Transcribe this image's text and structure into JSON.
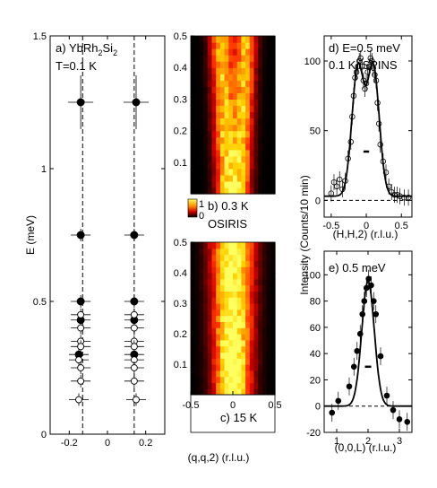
{
  "chart_data": [
    {
      "id": "a",
      "type": "scatter",
      "panel_label": "a)",
      "title_parts": [
        "YbRh",
        "2",
        "Si",
        "2"
      ],
      "subtitle": "T=0.1 K",
      "ylabel": "E (meV)",
      "xlim": [
        -0.3,
        0.3
      ],
      "ylim": [
        0,
        1.5
      ],
      "xticks": [
        "-0.2",
        "0",
        "0.2"
      ],
      "xtick_values": [
        -0.2,
        0,
        0.2
      ],
      "yticks": [
        "0",
        "0.5",
        "1",
        "1.5"
      ],
      "ytick_values": [
        0,
        0.5,
        1,
        1.5
      ],
      "dashed_x": [
        -0.13,
        0.14
      ],
      "series": [
        {
          "marker": "filled",
          "x": [
            -0.14,
            0.15,
            -0.14,
            0.14,
            -0.14,
            0.14,
            -0.14,
            0.14,
            -0.15,
            0.14
          ],
          "y": [
            1.25,
            1.25,
            0.75,
            0.75,
            0.5,
            0.5,
            0.43,
            0.43,
            0.3,
            0.3
          ]
        },
        {
          "marker": "open",
          "x": [
            -0.14,
            0.14,
            -0.14,
            0.14,
            -0.14,
            0.14,
            -0.14,
            0.14,
            -0.15,
            0.14,
            -0.14,
            0.14,
            -0.14,
            0.14,
            -0.15,
            0.15
          ],
          "y": [
            0.45,
            0.45,
            0.4,
            0.4,
            0.35,
            0.35,
            0.33,
            0.33,
            0.28,
            0.28,
            0.25,
            0.25,
            0.2,
            0.2,
            0.13,
            0.13
          ]
        }
      ]
    },
    {
      "id": "b",
      "type": "heatmap",
      "panel_label": "b)",
      "label": "0.3 K",
      "instrument": "OSIRIS",
      "colorbar_ticks": [
        "1",
        "0"
      ],
      "colors": [
        "#000000",
        "#6a0000",
        "#cc0000",
        "#ff3300",
        "#ff8a00",
        "#ffd000",
        "#ffff60"
      ],
      "xlim": [
        -0.5,
        0.5
      ],
      "ylim": [
        0,
        0.5
      ],
      "yticks": [
        "0.1",
        "0.2",
        "0.3",
        "0.4",
        "0.5"
      ],
      "ytick_values": [
        0.1,
        0.2,
        0.3,
        0.4,
        0.5
      ],
      "ridge_offsets": [
        -0.13,
        0.14
      ],
      "width": 0.09,
      "intensity_scale": 1.0
    },
    {
      "id": "c",
      "type": "heatmap",
      "panel_label": "c)",
      "label": "15 K",
      "colors": [
        "#000000",
        "#6a0000",
        "#cc0000",
        "#ff3300",
        "#ff8a00",
        "#ffd000",
        "#ffff60"
      ],
      "xlabel": "(q,q,2) (r.l.u.)",
      "xlim": [
        -0.5,
        0.5
      ],
      "ylim": [
        0,
        0.5
      ],
      "xticks": [
        "-0.5",
        "0",
        "0.5"
      ],
      "xtick_values": [
        -0.5,
        0,
        0.5
      ],
      "yticks": [
        "0.1",
        "0.2",
        "0.3",
        "0.4",
        "0.5"
      ],
      "ytick_values": [
        0.1,
        0.2,
        0.3,
        0.4,
        0.5
      ],
      "ridge_offsets": [
        -0.1,
        0.1
      ],
      "width": 0.13,
      "intensity_scale": 0.85
    },
    {
      "id": "d",
      "type": "scatter",
      "panel_label": "d)",
      "label": "E=0.5 meV",
      "sublabel": "0.1 K, SPINS",
      "xlabel": "(H,H,2) (r.l.u.)",
      "xlim": [
        -0.6,
        0.65
      ],
      "ylim": [
        -12,
        118
      ],
      "xticks": [
        "-0.5",
        "0",
        "0.5"
      ],
      "xtick_values": [
        -0.5,
        0,
        0.5
      ],
      "yticks": [
        "0",
        "50",
        "100"
      ],
      "ytick_values": [
        0,
        50,
        100
      ],
      "x": [
        -0.5,
        -0.46,
        -0.42,
        -0.38,
        -0.34,
        -0.3,
        -0.26,
        -0.22,
        -0.2,
        -0.18,
        -0.16,
        -0.14,
        -0.12,
        -0.1,
        -0.08,
        -0.06,
        -0.04,
        -0.02,
        0.0,
        0.02,
        0.04,
        0.06,
        0.08,
        0.1,
        0.12,
        0.14,
        0.16,
        0.18,
        0.2,
        0.24,
        0.28,
        0.32,
        0.36,
        0.4,
        0.44,
        0.48,
        0.54,
        0.6
      ],
      "y": [
        5,
        13,
        10,
        15,
        8,
        14,
        30,
        42,
        60,
        75,
        88,
        92,
        96,
        100,
        102,
        96,
        86,
        80,
        84,
        92,
        96,
        102,
        100,
        95,
        90,
        86,
        70,
        55,
        40,
        28,
        20,
        10,
        6,
        4,
        4,
        3,
        2,
        2
      ],
      "fit": {
        "centers": [
          -0.12,
          0.1
        ],
        "sigma": 0.085,
        "amplitude": 92,
        "background": 3
      },
      "dashed_y": 0,
      "resolution_bar": {
        "x": [
          -0.04,
          0.04
        ],
        "y": 35
      }
    },
    {
      "id": "e",
      "type": "scatter",
      "panel_label": "e)",
      "label": "0.5 meV",
      "xlabel": "(0,0,L) (r.l.u.)",
      "ylabel": "Intensity (Counts/10 min)",
      "xlim": [
        0.6,
        3.4
      ],
      "ylim": [
        -20,
        118
      ],
      "xticks": [
        "1",
        "2",
        "3"
      ],
      "xtick_values": [
        1,
        2,
        3
      ],
      "yticks": [
        "-20",
        "0",
        "20",
        "40",
        "60",
        "80",
        "100"
      ],
      "ytick_values": [
        -20,
        0,
        20,
        40,
        60,
        80,
        100
      ],
      "x": [
        0.85,
        1.05,
        1.4,
        1.55,
        1.65,
        1.75,
        1.82,
        1.88,
        1.95,
        2.02,
        2.1,
        2.18,
        2.25,
        2.4,
        2.6,
        2.8,
        3.0,
        3.25
      ],
      "y": [
        -5,
        4,
        15,
        30,
        42,
        55,
        70,
        80,
        90,
        97,
        92,
        80,
        70,
        38,
        8,
        -3,
        -10,
        -12
      ],
      "fit": {
        "center": 2.0,
        "sigma": 0.2,
        "amplitude": 95,
        "background": 0
      },
      "dashed_y": 0,
      "resolution_bar": {
        "x": [
          1.9,
          2.1
        ],
        "y": 30
      }
    }
  ]
}
